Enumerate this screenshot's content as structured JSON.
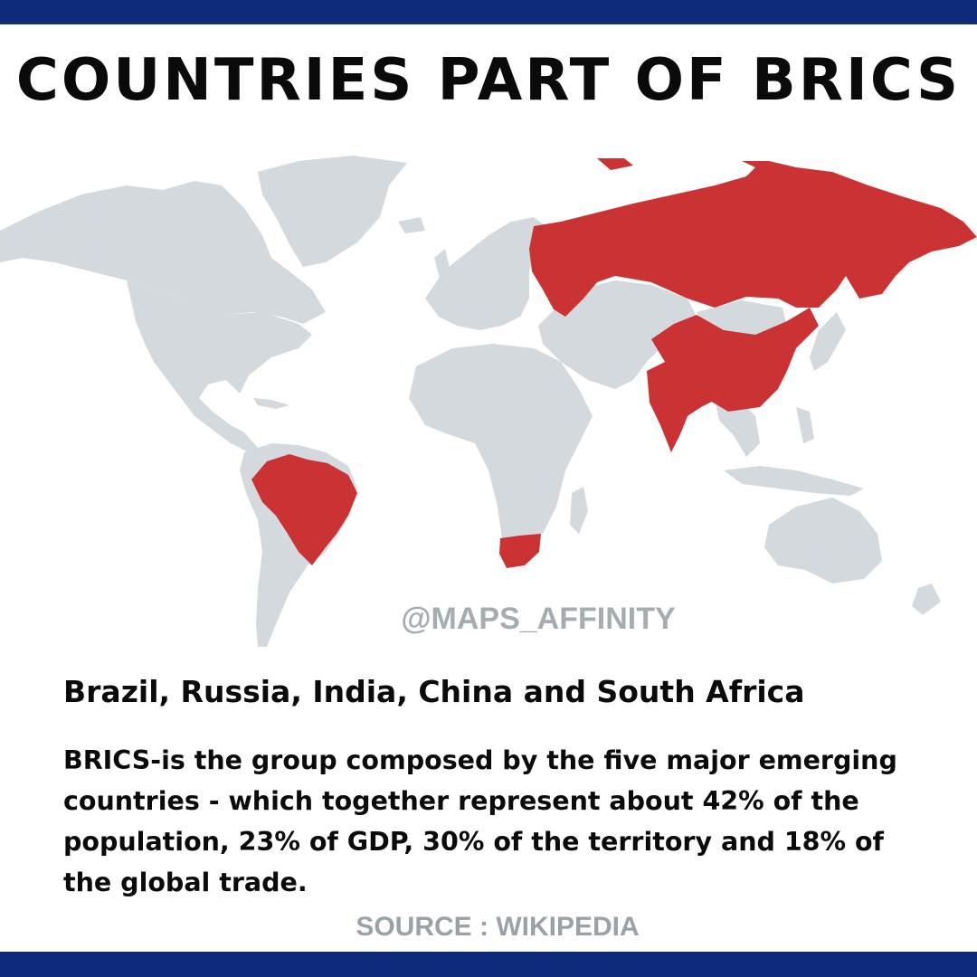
{
  "title": "COUNTRIES PART OF BRICS",
  "watermark": "@MAPS_AFFINITY",
  "subtitle": "Brazil, Russia, India, China and South Africa",
  "description": "BRICS-is the group composed by the five major emerging countries - which together represent about 42% of the population, 23% of GDP, 30% of the territory and 18% of the global trade.",
  "source": "SOURCE : WIKIPEDIA",
  "colors": {
    "band": "#0f2a7a",
    "highlight": "#cb3234",
    "land": "#d3d9dd",
    "muted_text": "#9aa2a7"
  }
}
